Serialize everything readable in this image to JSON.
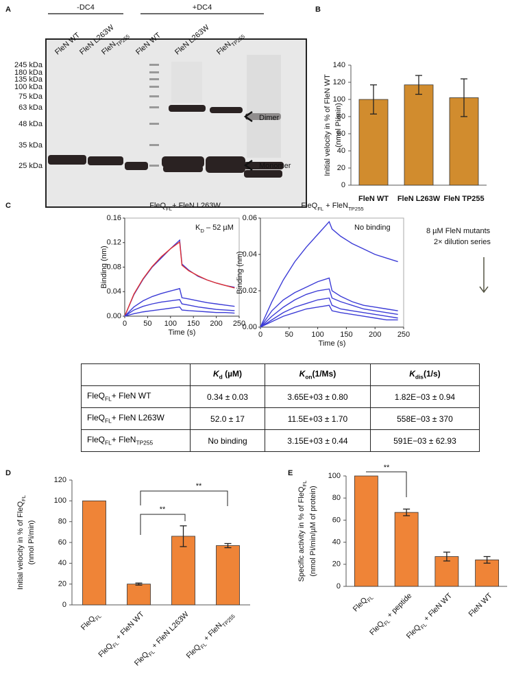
{
  "panel_labels": [
    "A",
    "B",
    "C",
    "D",
    "E"
  ],
  "gel": {
    "groups": [
      "-DC4",
      "+DC4"
    ],
    "lanes": [
      "FleN WT",
      "FleN L263W",
      [
        "FleN",
        "TP255"
      ],
      "FleN WT",
      "FleN L263W",
      [
        "FleN",
        "TP255"
      ]
    ],
    "markers": [
      "245 kDa",
      "180 kDa",
      "135 kDa",
      "100 kDa",
      "75 kDa",
      "63 kDa",
      "48 kDa",
      "35 kDa",
      "25 kDa"
    ],
    "annotations": [
      "Dimer",
      "Monomer"
    ]
  },
  "binding_notes": [
    "8 µM FleN mutants",
    "2× dilution series"
  ],
  "table": {
    "header": [
      [
        "K",
        "d",
        " (µM)"
      ],
      [
        "K",
        "on",
        "(1/Ms)"
      ],
      [
        "K",
        "dis",
        "(1/s)"
      ]
    ],
    "rows": [
      [
        [
          "FleQ",
          "FL",
          "+ FleN WT"
        ],
        "0.34 ± 0.03",
        "3.65E+03 ± 0.80",
        "1.82E−03 ± 0.94"
      ],
      [
        [
          "FleQ",
          "FL",
          "+ FleN L263W"
        ],
        "52.0 ± 17",
        "11.5E+03 ± 1.70",
        "558E−03 ±  370"
      ],
      [
        [
          "FleQ",
          "FL",
          "+ FleN",
          "TP255"
        ],
        "No binding",
        "3.15E+03 ± 0.44",
        "591E−03 ± 62.93"
      ]
    ]
  },
  "chart_data": [
    {
      "type": "bar",
      "categories": [
        "FleN WT",
        "FleN L263W",
        "FleN TP255"
      ],
      "values": [
        100,
        117,
        102
      ],
      "errors": [
        17,
        11,
        22
      ],
      "color": "#d18c2e",
      "ylabel": [
        "Initial velocity in % of FleN WT",
        "(nmol Pi/min)"
      ],
      "ylim": [
        0,
        140
      ],
      "yticks": [
        0,
        20,
        40,
        60,
        80,
        100,
        120,
        140
      ]
    },
    {
      "type": "line",
      "title": [
        "FleQ",
        "FL",
        "+ FleN L263W"
      ],
      "annotation": [
        "K",
        "D",
        " – 52 µM"
      ],
      "xlabel": "Time (s)",
      "ylabel": "Binding (nm)",
      "x": [
        0,
        20,
        40,
        60,
        80,
        100,
        120,
        125,
        140,
        160,
        180,
        200,
        220,
        240
      ],
      "series": [
        {
          "color": "#3b3bd6",
          "values": [
            0,
            0.035,
            0.06,
            0.08,
            0.095,
            0.11,
            0.124,
            0.085,
            0.075,
            0.065,
            0.059,
            0.054,
            0.05,
            0.047
          ]
        },
        {
          "color": "#e03030",
          "values": [
            0,
            0.036,
            0.061,
            0.081,
            0.097,
            0.11,
            0.121,
            0.083,
            0.074,
            0.066,
            0.059,
            0.054,
            0.05,
            0.046
          ]
        },
        {
          "color": "#3b3bd6",
          "values": [
            0,
            0.015,
            0.025,
            0.032,
            0.037,
            0.041,
            0.045,
            0.03,
            0.028,
            0.025,
            0.022,
            0.02,
            0.018,
            0.016
          ]
        },
        {
          "color": "#3b3bd6",
          "values": [
            0,
            0.01,
            0.016,
            0.02,
            0.023,
            0.025,
            0.027,
            0.02,
            0.018,
            0.015,
            0.013,
            0.011,
            0.01,
            0.009
          ]
        },
        {
          "color": "#3b3bd6",
          "values": [
            0,
            0.004,
            0.007,
            0.009,
            0.011,
            0.013,
            0.015,
            0.01,
            0.009,
            0.008,
            0.007,
            0.006,
            0.006,
            0.005
          ]
        }
      ],
      "xlim": [
        0,
        250
      ],
      "xticks": [
        0,
        50,
        100,
        150,
        200,
        250
      ],
      "ylim": [
        0,
        0.16
      ],
      "yticks": [
        {
          "value": 0,
          "label": "0.00"
        },
        {
          "value": 0.04,
          "label": "0.04"
        },
        {
          "value": 0.08,
          "label": "0.08"
        },
        {
          "value": 0.12,
          "label": "0.12"
        },
        {
          "value": 0.16,
          "label": "0.16"
        }
      ]
    },
    {
      "type": "line",
      "title": [
        "FleQ",
        "FL",
        " + FleN",
        "TP255"
      ],
      "annotation": "No binding",
      "xlabel": "Time (s)",
      "ylabel": "Binding (nm)",
      "x": [
        0,
        20,
        40,
        60,
        80,
        100,
        120,
        125,
        140,
        160,
        180,
        200,
        220,
        240
      ],
      "series": [
        {
          "color": "#3b3bd6",
          "values": [
            0,
            0.014,
            0.026,
            0.036,
            0.044,
            0.051,
            0.058,
            0.054,
            0.05,
            0.046,
            0.043,
            0.04,
            0.038,
            0.036
          ]
        },
        {
          "color": "#3b3bd6",
          "values": [
            0,
            0.009,
            0.015,
            0.019,
            0.022,
            0.025,
            0.027,
            0.02,
            0.017,
            0.014,
            0.012,
            0.011,
            0.01,
            0.009
          ]
        },
        {
          "color": "#3b3bd6",
          "values": [
            0,
            0.006,
            0.011,
            0.015,
            0.018,
            0.02,
            0.021,
            0.016,
            0.014,
            0.012,
            0.01,
            0.009,
            0.008,
            0.007
          ]
        },
        {
          "color": "#3b3bd6",
          "values": [
            0,
            0.004,
            0.008,
            0.011,
            0.013,
            0.015,
            0.016,
            0.012,
            0.01,
            0.009,
            0.008,
            0.007,
            0.006,
            0.005
          ]
        },
        {
          "color": "#3b3bd6",
          "values": [
            0,
            0.003,
            0.006,
            0.008,
            0.01,
            0.011,
            0.012,
            0.009,
            0.008,
            0.007,
            0.006,
            0.005,
            0.004,
            0.004
          ]
        }
      ],
      "xlim": [
        0,
        250
      ],
      "xticks": [
        0,
        50,
        100,
        150,
        200,
        250
      ],
      "ylim": [
        0,
        0.06
      ],
      "yticks": [
        {
          "value": 0,
          "label": "0.00"
        },
        {
          "value": 0.02,
          "label": "0.02"
        },
        {
          "value": 0.04,
          "label": "0.04"
        },
        {
          "value": 0.06,
          "label": "0.06"
        }
      ]
    },
    {
      "type": "bar",
      "categories": [
        [
          "FleQ",
          "FL"
        ],
        [
          "FleQ",
          "FL",
          " + FleN WT"
        ],
        [
          "FleQ",
          "FL",
          " + FleN L263W"
        ],
        [
          "FleQ",
          "FL",
          " + FleN",
          "TP255"
        ]
      ],
      "values": [
        100,
        20,
        66,
        57
      ],
      "errors": [
        null,
        1,
        10,
        2
      ],
      "color": "#ef8437",
      "ylabel": [
        [
          "Initial velocity in % of FleQ",
          "FL"
        ],
        "(nmol Pi/min)"
      ],
      "annotations": [
        "**",
        "**"
      ],
      "ylim": [
        0,
        120
      ],
      "yticks": [
        0,
        20,
        40,
        60,
        80,
        100,
        120
      ]
    },
    {
      "type": "bar",
      "categories": [
        [
          "FleQ",
          "FL"
        ],
        [
          "FleQ",
          "FL",
          " + peptide"
        ],
        [
          "FleQ",
          "FL",
          " + FleN WT"
        ],
        "FleN WT"
      ],
      "values": [
        100,
        67,
        27,
        24
      ],
      "errors": [
        null,
        3,
        4,
        3
      ],
      "color": "#ef8437",
      "ylabel": [
        [
          "Specific activity in % of FleQ",
          "FL"
        ],
        "(nmol Pi/min/µM of protein)"
      ],
      "annotations": [
        "**"
      ],
      "ylim": [
        0,
        100
      ],
      "yticks": [
        0,
        20,
        40,
        60,
        80,
        100
      ]
    }
  ]
}
